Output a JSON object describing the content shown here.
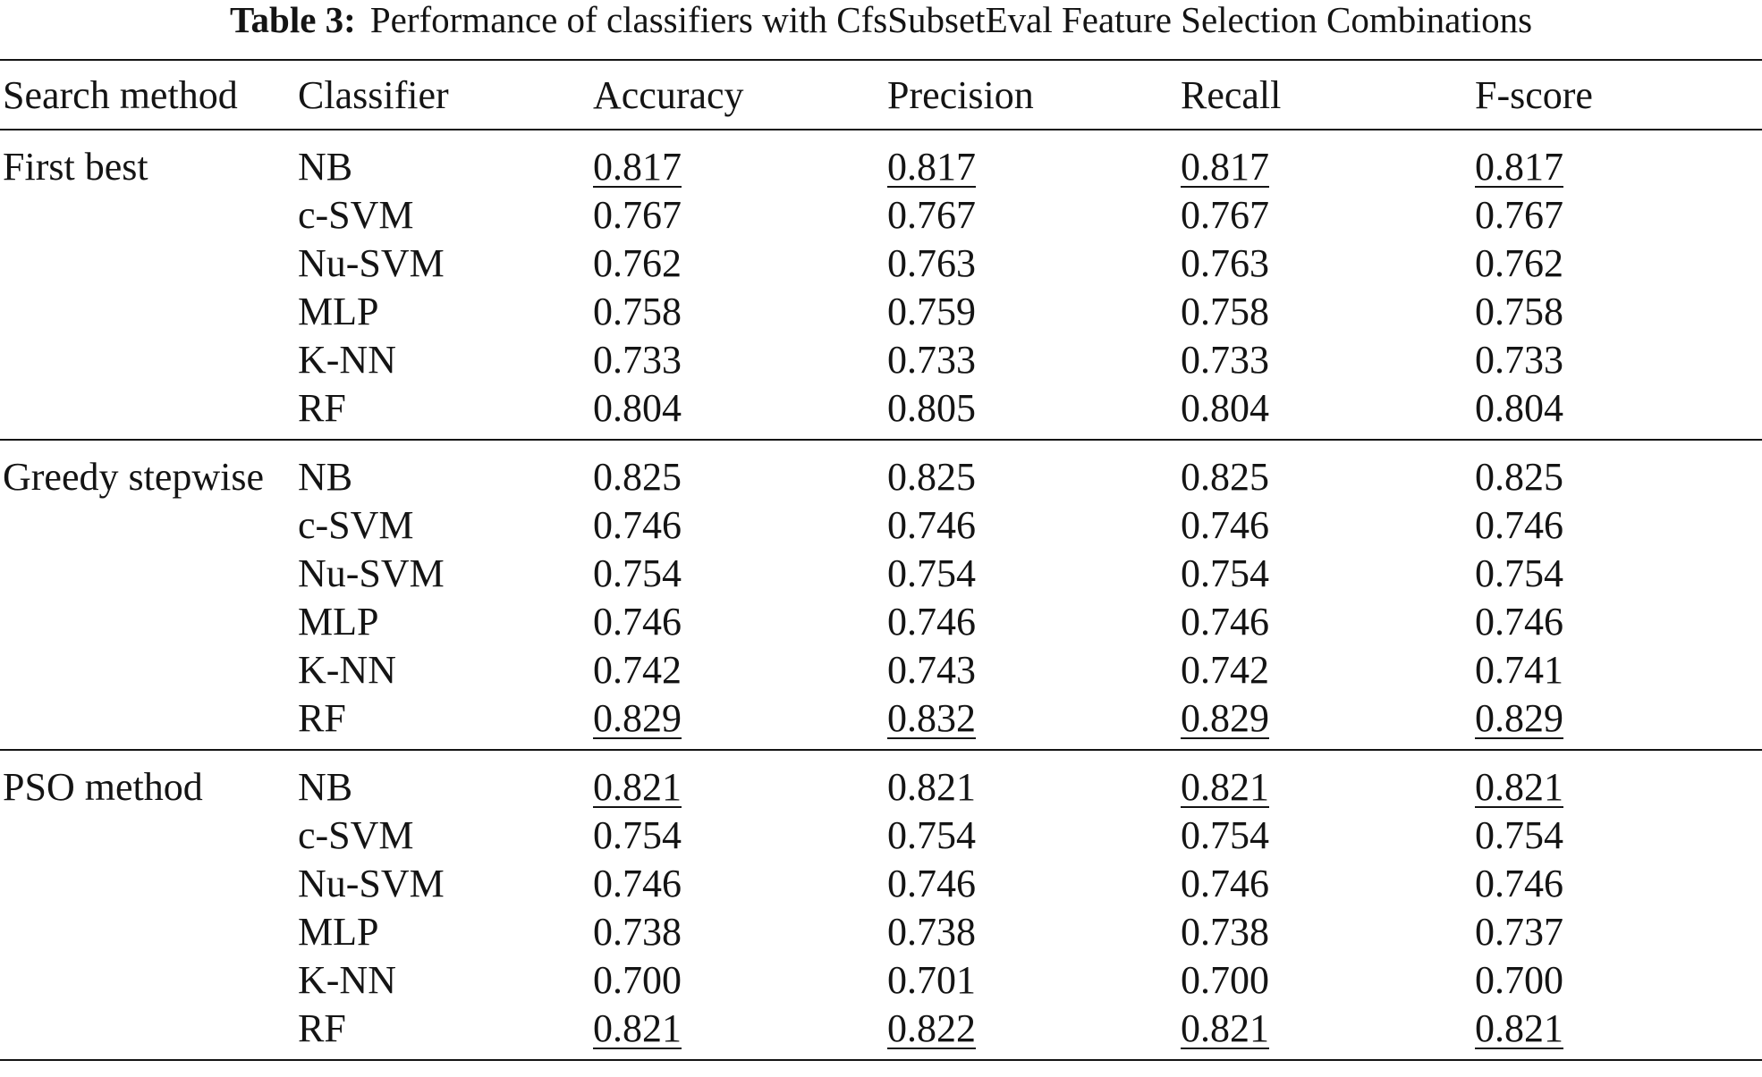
{
  "caption": {
    "label": "Table 3:",
    "text": "Performance of classifiers with CfsSubsetEval Feature Selection Combinations"
  },
  "headers": [
    "Search method",
    "Classifier",
    "Accuracy",
    "Precision",
    "Recall",
    "F-score"
  ],
  "groups": [
    {
      "search_method": "First best",
      "rows": [
        {
          "classifier": "NB",
          "accuracy": "0.817",
          "precision": "0.817",
          "recall": "0.817",
          "fscore": "0.817",
          "underlined": [
            "accuracy",
            "precision",
            "recall",
            "fscore"
          ]
        },
        {
          "classifier": "c-SVM",
          "accuracy": "0.767",
          "precision": "0.767",
          "recall": "0.767",
          "fscore": "0.767",
          "underlined": []
        },
        {
          "classifier": "Nu-SVM",
          "accuracy": "0.762",
          "precision": "0.763",
          "recall": "0.763",
          "fscore": "0.762",
          "underlined": []
        },
        {
          "classifier": "MLP",
          "accuracy": "0.758",
          "precision": "0.759",
          "recall": "0.758",
          "fscore": "0.758",
          "underlined": []
        },
        {
          "classifier": "K-NN",
          "accuracy": "0.733",
          "precision": "0.733",
          "recall": "0.733",
          "fscore": "0.733",
          "underlined": []
        },
        {
          "classifier": "RF",
          "accuracy": "0.804",
          "precision": "0.805",
          "recall": "0.804",
          "fscore": "0.804",
          "underlined": []
        }
      ]
    },
    {
      "search_method": "Greedy stepwise",
      "rows": [
        {
          "classifier": "NB",
          "accuracy": "0.825",
          "precision": "0.825",
          "recall": "0.825",
          "fscore": "0.825",
          "underlined": []
        },
        {
          "classifier": "c-SVM",
          "accuracy": "0.746",
          "precision": "0.746",
          "recall": "0.746",
          "fscore": "0.746",
          "underlined": []
        },
        {
          "classifier": "Nu-SVM",
          "accuracy": "0.754",
          "precision": "0.754",
          "recall": "0.754",
          "fscore": "0.754",
          "underlined": []
        },
        {
          "classifier": "MLP",
          "accuracy": "0.746",
          "precision": "0.746",
          "recall": "0.746",
          "fscore": "0.746",
          "underlined": []
        },
        {
          "classifier": "K-NN",
          "accuracy": "0.742",
          "precision": "0.743",
          "recall": "0.742",
          "fscore": "0.741",
          "underlined": []
        },
        {
          "classifier": "RF",
          "accuracy": "0.829",
          "precision": "0.832",
          "recall": "0.829",
          "fscore": "0.829",
          "underlined": [
            "accuracy",
            "precision",
            "recall",
            "fscore"
          ]
        }
      ]
    },
    {
      "search_method": "PSO method",
      "rows": [
        {
          "classifier": "NB",
          "accuracy": "0.821",
          "precision": "0.821",
          "recall": "0.821",
          "fscore": "0.821",
          "underlined": [
            "accuracy",
            "recall",
            "fscore"
          ]
        },
        {
          "classifier": "c-SVM",
          "accuracy": "0.754",
          "precision": "0.754",
          "recall": "0.754",
          "fscore": "0.754",
          "underlined": []
        },
        {
          "classifier": "Nu-SVM",
          "accuracy": "0.746",
          "precision": "0.746",
          "recall": "0.746",
          "fscore": "0.746",
          "underlined": []
        },
        {
          "classifier": "MLP",
          "accuracy": "0.738",
          "precision": "0.738",
          "recall": "0.738",
          "fscore": "0.737",
          "underlined": []
        },
        {
          "classifier": "K-NN",
          "accuracy": "0.700",
          "precision": "0.701",
          "recall": "0.700",
          "fscore": "0.700",
          "underlined": []
        },
        {
          "classifier": "RF",
          "accuracy": "0.821",
          "precision": "0.822",
          "recall": "0.821",
          "fscore": "0.821",
          "underlined": [
            "accuracy",
            "precision",
            "recall",
            "fscore"
          ]
        }
      ]
    }
  ]
}
